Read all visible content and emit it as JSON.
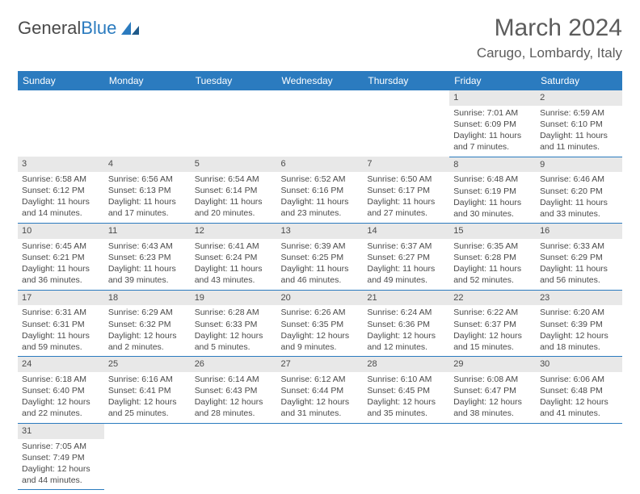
{
  "logo": {
    "text1": "General",
    "text2": "Blue"
  },
  "title": "March 2024",
  "location": "Carugo, Lombardy, Italy",
  "colors": {
    "header_bg": "#2b7bbf",
    "header_text": "#ffffff",
    "daynum_bg": "#e8e8e8",
    "text": "#4a4a4a",
    "rule": "#2b7bbf"
  },
  "weekdays": [
    "Sunday",
    "Monday",
    "Tuesday",
    "Wednesday",
    "Thursday",
    "Friday",
    "Saturday"
  ],
  "weeks": [
    [
      null,
      null,
      null,
      null,
      null,
      {
        "n": "1",
        "sunrise": "7:01 AM",
        "sunset": "6:09 PM",
        "daylight": "11 hours and 7 minutes."
      },
      {
        "n": "2",
        "sunrise": "6:59 AM",
        "sunset": "6:10 PM",
        "daylight": "11 hours and 11 minutes."
      }
    ],
    [
      {
        "n": "3",
        "sunrise": "6:58 AM",
        "sunset": "6:12 PM",
        "daylight": "11 hours and 14 minutes."
      },
      {
        "n": "4",
        "sunrise": "6:56 AM",
        "sunset": "6:13 PM",
        "daylight": "11 hours and 17 minutes."
      },
      {
        "n": "5",
        "sunrise": "6:54 AM",
        "sunset": "6:14 PM",
        "daylight": "11 hours and 20 minutes."
      },
      {
        "n": "6",
        "sunrise": "6:52 AM",
        "sunset": "6:16 PM",
        "daylight": "11 hours and 23 minutes."
      },
      {
        "n": "7",
        "sunrise": "6:50 AM",
        "sunset": "6:17 PM",
        "daylight": "11 hours and 27 minutes."
      },
      {
        "n": "8",
        "sunrise": "6:48 AM",
        "sunset": "6:19 PM",
        "daylight": "11 hours and 30 minutes."
      },
      {
        "n": "9",
        "sunrise": "6:46 AM",
        "sunset": "6:20 PM",
        "daylight": "11 hours and 33 minutes."
      }
    ],
    [
      {
        "n": "10",
        "sunrise": "6:45 AM",
        "sunset": "6:21 PM",
        "daylight": "11 hours and 36 minutes."
      },
      {
        "n": "11",
        "sunrise": "6:43 AM",
        "sunset": "6:23 PM",
        "daylight": "11 hours and 39 minutes."
      },
      {
        "n": "12",
        "sunrise": "6:41 AM",
        "sunset": "6:24 PM",
        "daylight": "11 hours and 43 minutes."
      },
      {
        "n": "13",
        "sunrise": "6:39 AM",
        "sunset": "6:25 PM",
        "daylight": "11 hours and 46 minutes."
      },
      {
        "n": "14",
        "sunrise": "6:37 AM",
        "sunset": "6:27 PM",
        "daylight": "11 hours and 49 minutes."
      },
      {
        "n": "15",
        "sunrise": "6:35 AM",
        "sunset": "6:28 PM",
        "daylight": "11 hours and 52 minutes."
      },
      {
        "n": "16",
        "sunrise": "6:33 AM",
        "sunset": "6:29 PM",
        "daylight": "11 hours and 56 minutes."
      }
    ],
    [
      {
        "n": "17",
        "sunrise": "6:31 AM",
        "sunset": "6:31 PM",
        "daylight": "11 hours and 59 minutes."
      },
      {
        "n": "18",
        "sunrise": "6:29 AM",
        "sunset": "6:32 PM",
        "daylight": "12 hours and 2 minutes."
      },
      {
        "n": "19",
        "sunrise": "6:28 AM",
        "sunset": "6:33 PM",
        "daylight": "12 hours and 5 minutes."
      },
      {
        "n": "20",
        "sunrise": "6:26 AM",
        "sunset": "6:35 PM",
        "daylight": "12 hours and 9 minutes."
      },
      {
        "n": "21",
        "sunrise": "6:24 AM",
        "sunset": "6:36 PM",
        "daylight": "12 hours and 12 minutes."
      },
      {
        "n": "22",
        "sunrise": "6:22 AM",
        "sunset": "6:37 PM",
        "daylight": "12 hours and 15 minutes."
      },
      {
        "n": "23",
        "sunrise": "6:20 AM",
        "sunset": "6:39 PM",
        "daylight": "12 hours and 18 minutes."
      }
    ],
    [
      {
        "n": "24",
        "sunrise": "6:18 AM",
        "sunset": "6:40 PM",
        "daylight": "12 hours and 22 minutes."
      },
      {
        "n": "25",
        "sunrise": "6:16 AM",
        "sunset": "6:41 PM",
        "daylight": "12 hours and 25 minutes."
      },
      {
        "n": "26",
        "sunrise": "6:14 AM",
        "sunset": "6:43 PM",
        "daylight": "12 hours and 28 minutes."
      },
      {
        "n": "27",
        "sunrise": "6:12 AM",
        "sunset": "6:44 PM",
        "daylight": "12 hours and 31 minutes."
      },
      {
        "n": "28",
        "sunrise": "6:10 AM",
        "sunset": "6:45 PM",
        "daylight": "12 hours and 35 minutes."
      },
      {
        "n": "29",
        "sunrise": "6:08 AM",
        "sunset": "6:47 PM",
        "daylight": "12 hours and 38 minutes."
      },
      {
        "n": "30",
        "sunrise": "6:06 AM",
        "sunset": "6:48 PM",
        "daylight": "12 hours and 41 minutes."
      }
    ],
    [
      {
        "n": "31",
        "sunrise": "7:05 AM",
        "sunset": "7:49 PM",
        "daylight": "12 hours and 44 minutes."
      },
      null,
      null,
      null,
      null,
      null,
      null
    ]
  ],
  "labels": {
    "sunrise": "Sunrise: ",
    "sunset": "Sunset: ",
    "daylight": "Daylight: "
  }
}
